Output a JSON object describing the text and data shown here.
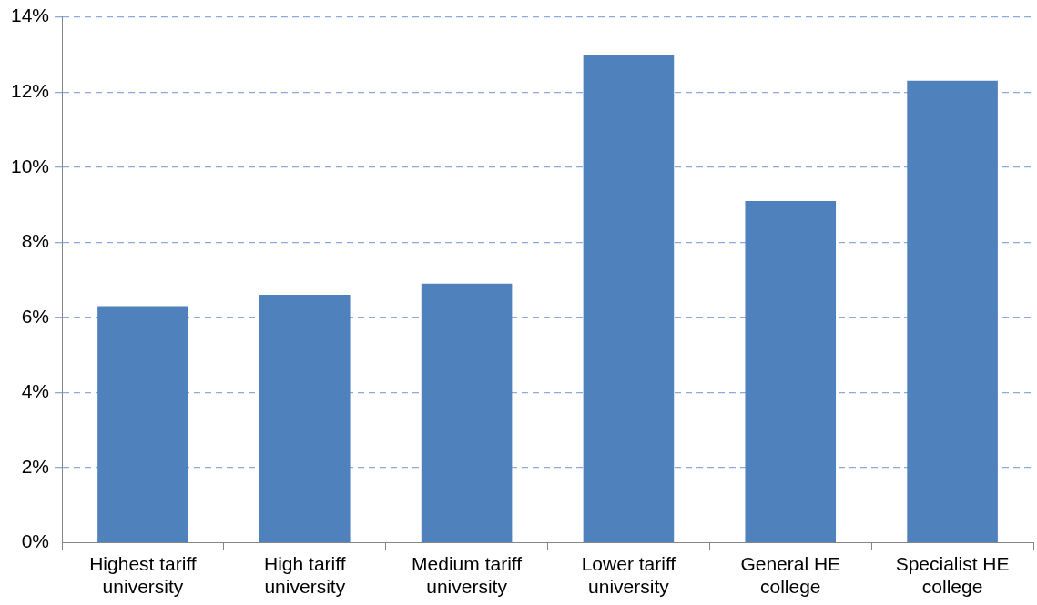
{
  "chart_data": {
    "type": "bar",
    "categories": [
      "Highest tariff university",
      "High tariff university",
      "Medium tariff university",
      "Lower tariff university",
      "General HE college",
      "Specialist HE college"
    ],
    "values": [
      6.3,
      6.6,
      6.9,
      13.0,
      9.1,
      12.3
    ],
    "color": "#4f81bd",
    "ylim": [
      0,
      14
    ],
    "yticks": [
      {
        "value": 0,
        "label": "0%"
      },
      {
        "value": 2,
        "label": "2%"
      },
      {
        "value": 4,
        "label": "4%"
      },
      {
        "value": 6,
        "label": "6%"
      },
      {
        "value": 8,
        "label": "8%"
      },
      {
        "value": 10,
        "label": "10%"
      },
      {
        "value": 12,
        "label": "12%"
      },
      {
        "value": 14,
        "label": "14%"
      }
    ],
    "grid": "y"
  }
}
